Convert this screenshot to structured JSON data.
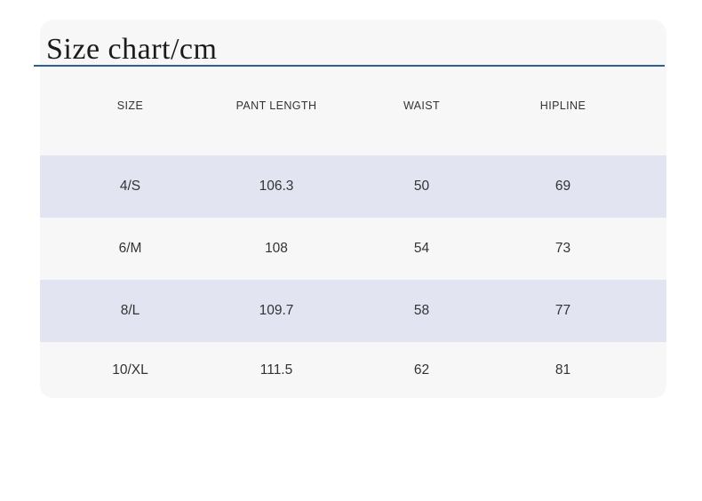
{
  "header": {
    "title": "Size chart/cm"
  },
  "chart_data": {
    "type": "table",
    "title": "Size chart/cm",
    "columns": [
      "SIZE",
      "PANT LENGTH",
      "WAIST",
      "HIPLINE"
    ],
    "rows": [
      [
        "4/S",
        "106.3",
        "50",
        "69"
      ],
      [
        "6/M",
        "108",
        "54",
        "73"
      ],
      [
        "8/L",
        "109.7",
        "58",
        "77"
      ],
      [
        "10/XL",
        "111.5",
        "62",
        "81"
      ]
    ]
  },
  "colors": {
    "underline": "#2d5f91",
    "stripe": "#e2e5f1",
    "panel_bg": "#f7f7f8",
    "text": "#333333",
    "title_text": "#1b1b1b"
  }
}
